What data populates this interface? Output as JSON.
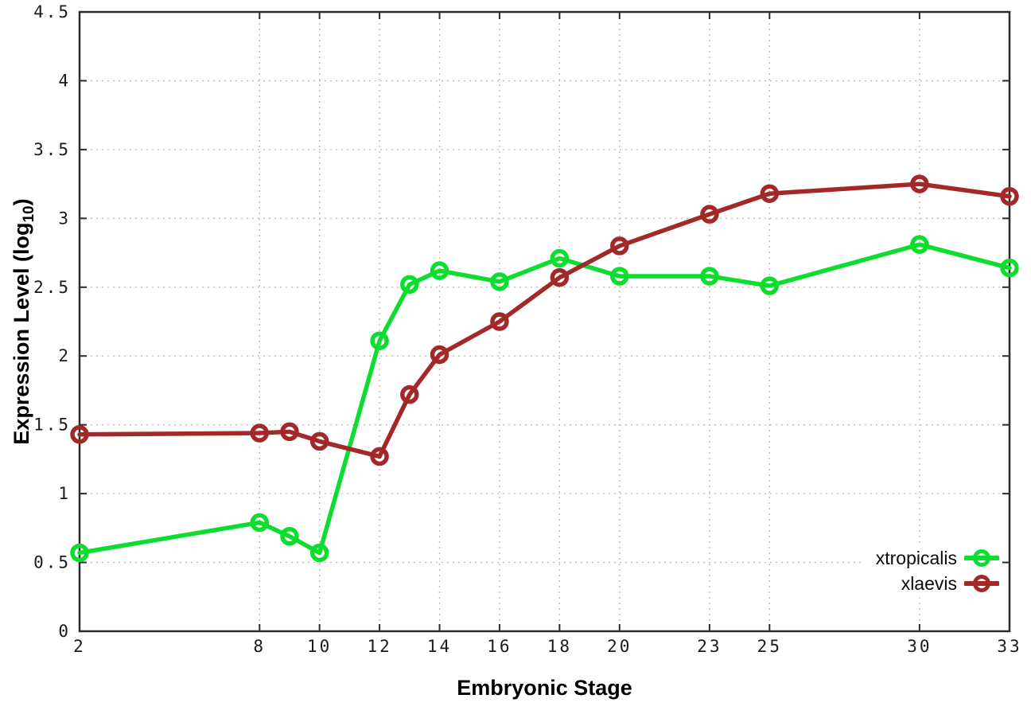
{
  "labels": {
    "xlabel": "Embryonic Stage",
    "ylabel_prefix": "Expression Level (log",
    "ylabel_sub": "10",
    "ylabel_suffix": ")"
  },
  "chart_data": {
    "type": "line",
    "title": "",
    "xlabel": "Embryonic Stage",
    "ylabel": "Expression Level (log10)",
    "xlim": [
      2,
      33
    ],
    "ylim": [
      0,
      4.5
    ],
    "xticks": [
      2,
      8,
      10,
      12,
      14,
      16,
      18,
      20,
      23,
      25,
      30,
      33
    ],
    "yticks": [
      0,
      0.5,
      1,
      1.5,
      2,
      2.5,
      3,
      3.5,
      4,
      4.5
    ],
    "ytick_labels": [
      "0",
      "0.5",
      "1",
      "1.5",
      "2",
      "2.5",
      "3",
      "3.5",
      "4",
      "4.5"
    ],
    "grid": true,
    "legend_position": "bottom-right",
    "x": [
      2,
      8,
      9,
      10,
      12,
      13,
      14,
      16,
      18,
      20,
      23,
      25,
      30,
      33
    ],
    "series": [
      {
        "name": "xtropicalis",
        "color": "#0ddd2e",
        "values": [
          0.57,
          0.79,
          0.69,
          0.57,
          2.11,
          2.52,
          2.62,
          2.54,
          2.71,
          2.58,
          2.58,
          2.51,
          2.81,
          2.64
        ]
      },
      {
        "name": "xlaevis",
        "color": "#a32828",
        "values": [
          1.43,
          1.44,
          1.45,
          1.38,
          1.27,
          1.72,
          2.01,
          2.25,
          2.57,
          2.8,
          3.03,
          3.18,
          3.25,
          3.16
        ]
      }
    ],
    "style": {
      "grid_color": "#bdbdbd",
      "border_color": "#2b2b2b",
      "tick_label_color": "#1a1a1a",
      "background": "#ffffff"
    }
  }
}
